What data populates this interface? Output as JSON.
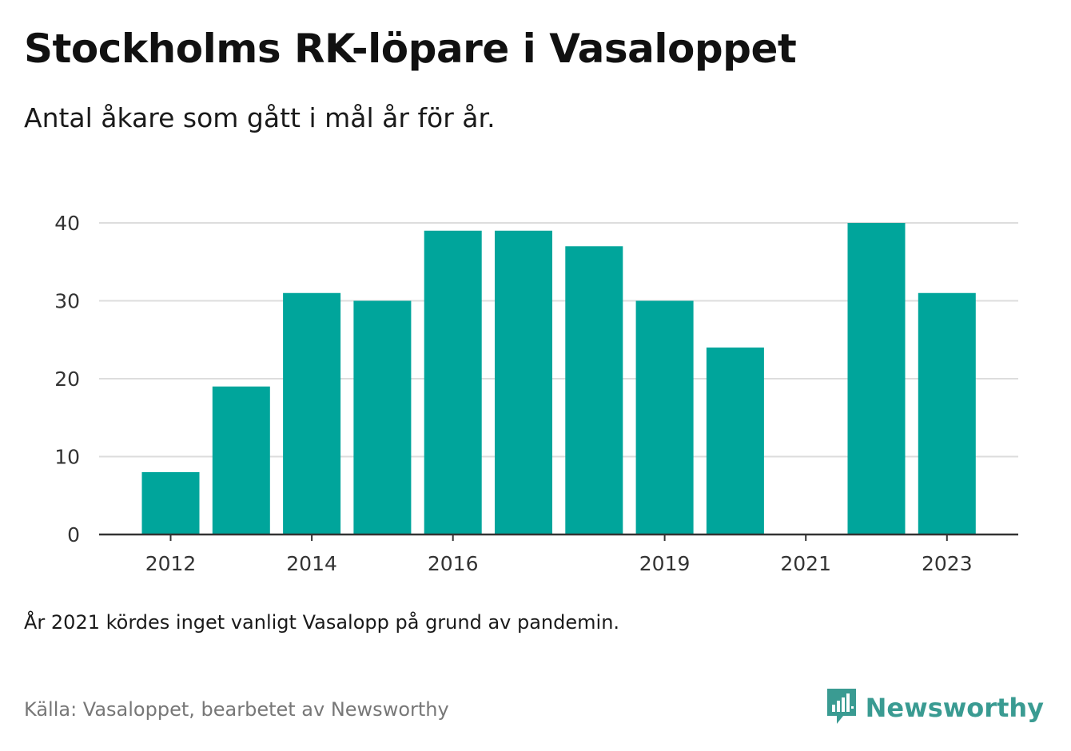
{
  "title": "Stockholms RK-löpare i Vasaloppet",
  "subtitle": "Antal åkare som gått i mål år för år.",
  "note": "År 2021 kördes inget vanligt Vasalopp på grund av pandemin.",
  "source": "Källa: Vasaloppet, bearbetet av Newsworthy",
  "brand": {
    "name": "Newsworthy",
    "icon": "bar-chart-speech-bubble-icon",
    "color": "#3a9b92"
  },
  "chart_data": {
    "type": "bar",
    "categories": [
      "2012",
      "2013",
      "2014",
      "2015",
      "2016",
      "2017",
      "2018",
      "2019",
      "2020",
      "2021",
      "2022",
      "2023"
    ],
    "values": [
      8,
      19,
      31,
      30,
      39,
      39,
      37,
      30,
      24,
      0,
      40,
      31
    ],
    "x_tick_labels": [
      "2012",
      "2014",
      "2016",
      "2019",
      "2021",
      "2023"
    ],
    "y_ticks": [
      0,
      10,
      20,
      30,
      40
    ],
    "ylim": [
      0,
      40
    ],
    "xlabel": "",
    "ylabel": "",
    "grid": true,
    "bar_color": "#00a59b",
    "grid_color": "#dddddd",
    "axis_color": "#333333"
  }
}
